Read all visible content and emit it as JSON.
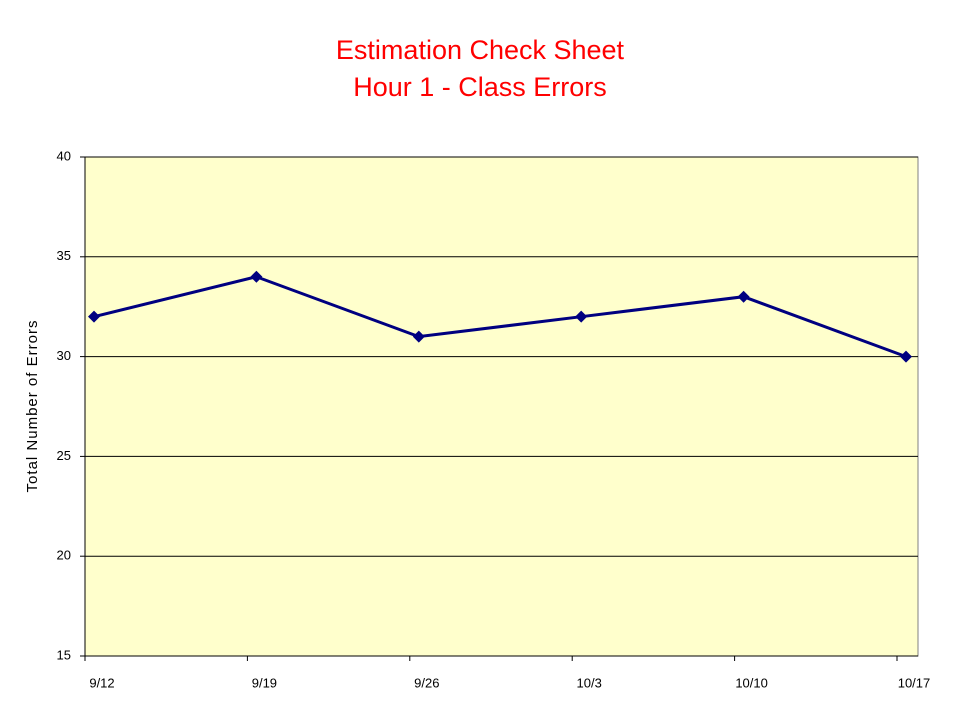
{
  "chart_data": {
    "type": "line",
    "title": "Estimation Check Sheet",
    "subtitle": "Hour 1 - Class Errors",
    "y_label": "Total Number of Errors",
    "categories": [
      "9/12",
      "9/19",
      "9/26",
      "10/3",
      "10/10",
      "10/17"
    ],
    "series": [
      {
        "name": "Class Errors",
        "color": "#000080",
        "values": [
          32,
          34,
          31,
          32,
          33,
          30
        ]
      }
    ],
    "ylim": [
      15,
      40
    ],
    "yticks": [
      15,
      20,
      25,
      30,
      35,
      40
    ],
    "grid": true,
    "plot_background": "#ffffcc"
  }
}
